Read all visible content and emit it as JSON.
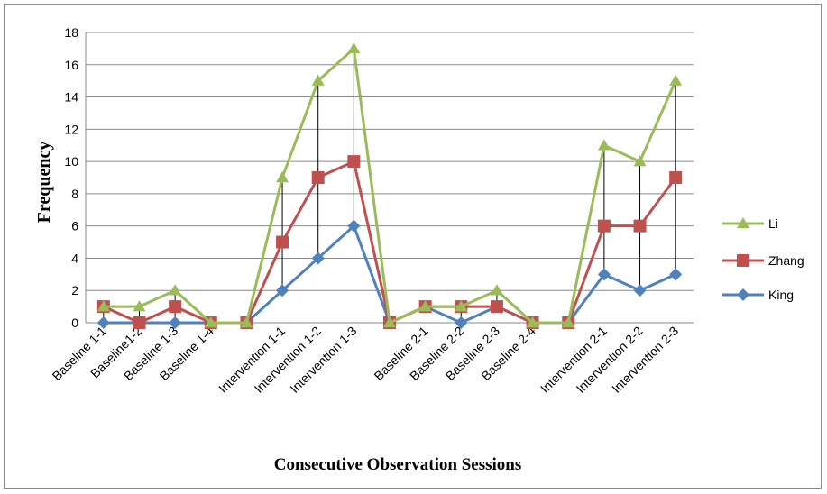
{
  "chart_data": {
    "type": "line",
    "title": "",
    "xlabel": "Consecutive Observation Sessions",
    "ylabel": "Frequency",
    "ylim": [
      0,
      18
    ],
    "ytick_step": 2,
    "grid": "horizontal",
    "legend_position": "right",
    "drop_lines": true,
    "categories": [
      "Baseline 1-1",
      "Baseline1-2",
      "Baseline 1-3",
      "Baseline 1-4",
      "",
      "Intervention 1-1",
      "Intervention 1-2",
      "Intervention 1-3",
      "",
      "Baseline 2-1",
      "Baseline 2-2",
      "Baseline 2-3",
      "Baseline 2-4",
      "",
      "Intervention 2-1",
      "Intervention 2-2",
      "Intervention 2-3"
    ],
    "series": [
      {
        "name": "Li",
        "color": "#9BBB59",
        "marker": "triangle",
        "values": [
          1,
          1,
          2,
          0,
          0,
          9,
          15,
          17,
          0,
          1,
          1,
          2,
          0,
          0,
          11,
          10,
          15
        ]
      },
      {
        "name": "Zhang",
        "color": "#C0504D",
        "marker": "square",
        "values": [
          1,
          0,
          1,
          0,
          0,
          5,
          9,
          10,
          0,
          1,
          1,
          1,
          0,
          0,
          6,
          6,
          9
        ]
      },
      {
        "name": "King",
        "color": "#4F81BD",
        "marker": "diamond",
        "values": [
          0,
          0,
          0,
          0,
          0,
          2,
          4,
          6,
          0,
          1,
          0,
          1,
          0,
          0,
          3,
          2,
          3
        ]
      }
    ]
  }
}
